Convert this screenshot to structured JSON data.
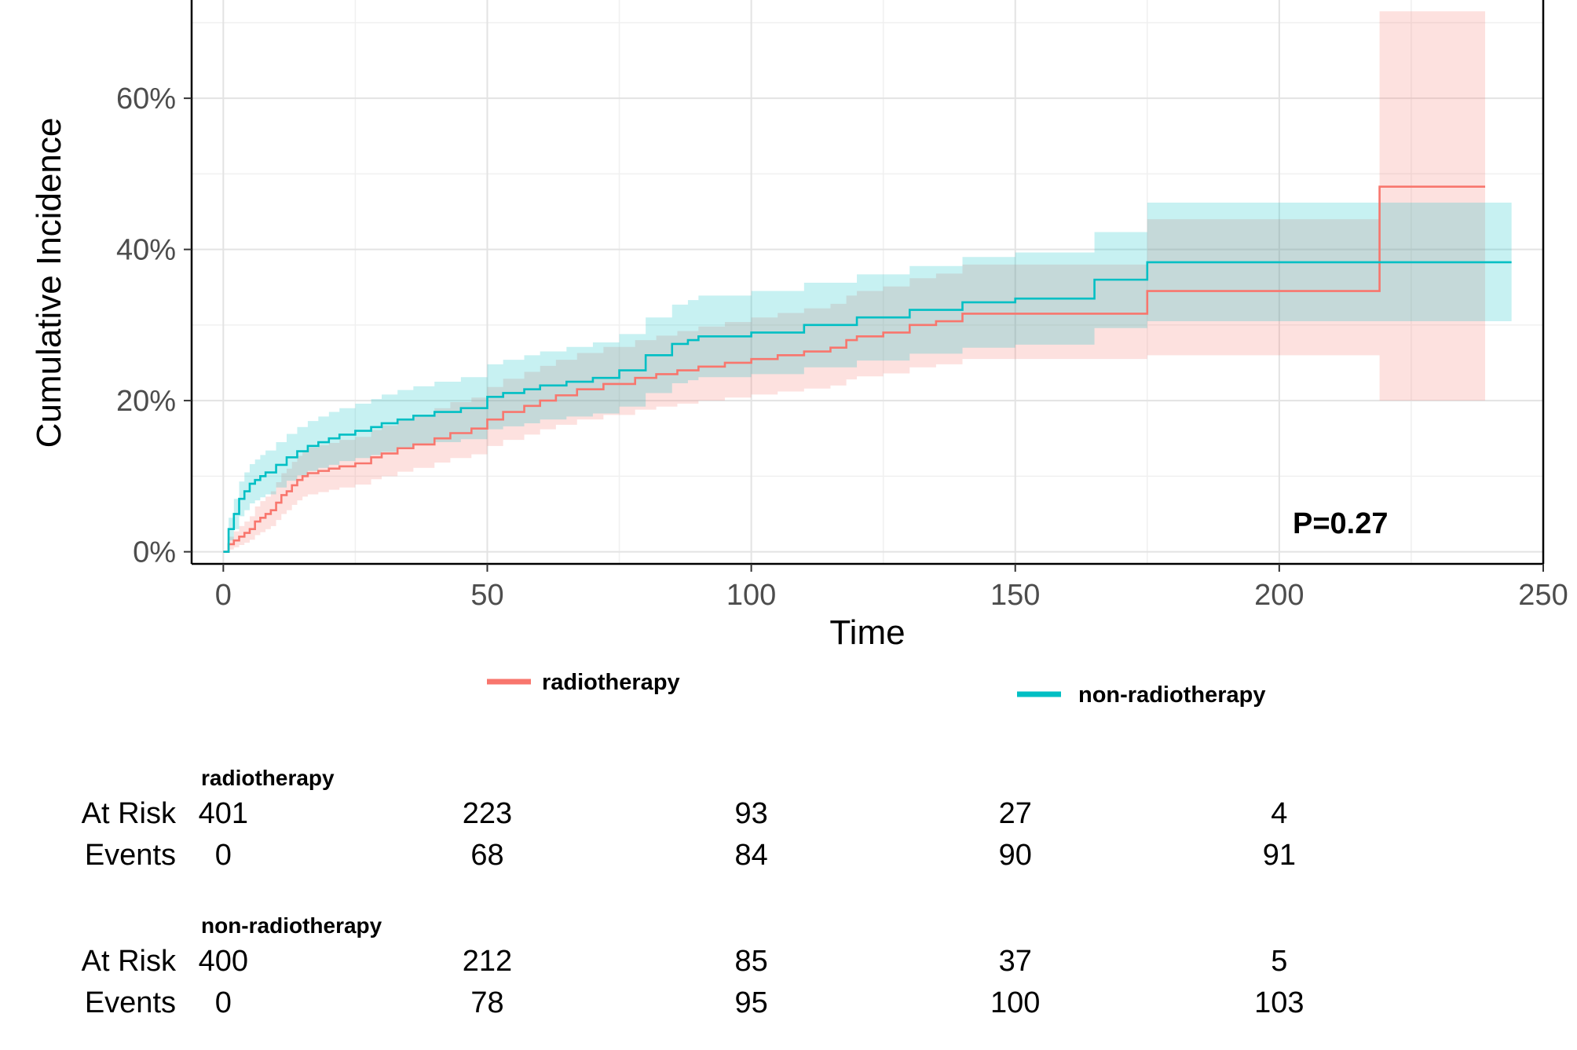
{
  "chart_data": {
    "type": "line",
    "subtype": "cumulative-incidence step curve with confidence bands",
    "xlabel": "Time",
    "ylabel": "Cumulative Incidence",
    "xlim": [
      -6,
      250
    ],
    "ylim": [
      -0.016,
      0.73
    ],
    "x_ticks": [
      0,
      50,
      100,
      150,
      200,
      250
    ],
    "x_tick_labels": [
      "0",
      "50",
      "100",
      "150",
      "200",
      "250"
    ],
    "y_ticks": [
      0,
      0.2,
      0.4,
      0.6
    ],
    "y_tick_labels": [
      "0%",
      "20%",
      "40%",
      "60%"
    ],
    "grid": true,
    "annotation": "P=0.27",
    "legend": {
      "position": "bottom"
    },
    "colors": {
      "radiotherapy": "#F8766D",
      "non_radiotherapy": "#00BFC4"
    },
    "series": [
      {
        "name": "radiotherapy",
        "legend_label": "radiotherapy",
        "color": "#F8766D",
        "x": [
          0,
          1,
          2,
          3,
          4,
          5,
          6,
          7,
          8,
          9,
          10,
          11,
          12,
          13,
          14,
          15,
          16,
          18,
          20,
          22,
          25,
          28,
          30,
          33,
          36,
          40,
          43,
          47,
          50,
          53,
          57,
          60,
          63,
          67,
          72,
          78,
          82,
          86,
          90,
          95,
          100,
          105,
          110,
          115,
          118,
          120,
          125,
          130,
          135,
          140,
          150,
          165,
          175,
          200,
          219,
          239
        ],
        "y": [
          0,
          0.01,
          0.015,
          0.02,
          0.025,
          0.03,
          0.04,
          0.045,
          0.05,
          0.055,
          0.065,
          0.075,
          0.08,
          0.088,
          0.095,
          0.1,
          0.104,
          0.107,
          0.11,
          0.113,
          0.117,
          0.125,
          0.13,
          0.137,
          0.142,
          0.15,
          0.157,
          0.163,
          0.175,
          0.185,
          0.193,
          0.2,
          0.207,
          0.215,
          0.222,
          0.23,
          0.235,
          0.24,
          0.245,
          0.25,
          0.255,
          0.26,
          0.265,
          0.27,
          0.28,
          0.285,
          0.29,
          0.3,
          0.305,
          0.315,
          0.315,
          0.315,
          0.345,
          0.345,
          0.483,
          0.483
        ],
        "lower": [
          0,
          0.003,
          0.006,
          0.009,
          0.012,
          0.016,
          0.022,
          0.026,
          0.03,
          0.034,
          0.042,
          0.05,
          0.055,
          0.062,
          0.068,
          0.073,
          0.076,
          0.079,
          0.082,
          0.085,
          0.089,
          0.096,
          0.1,
          0.106,
          0.111,
          0.118,
          0.124,
          0.129,
          0.14,
          0.148,
          0.155,
          0.162,
          0.168,
          0.175,
          0.181,
          0.188,
          0.192,
          0.196,
          0.2,
          0.204,
          0.208,
          0.212,
          0.216,
          0.22,
          0.228,
          0.232,
          0.236,
          0.244,
          0.248,
          0.255,
          0.255,
          0.255,
          0.26,
          0.26,
          0.2,
          0.2
        ],
        "upper": [
          0,
          0.02,
          0.027,
          0.034,
          0.04,
          0.047,
          0.06,
          0.067,
          0.073,
          0.08,
          0.092,
          0.104,
          0.11,
          0.119,
          0.127,
          0.133,
          0.138,
          0.141,
          0.144,
          0.148,
          0.152,
          0.161,
          0.167,
          0.175,
          0.18,
          0.19,
          0.198,
          0.204,
          0.218,
          0.229,
          0.238,
          0.246,
          0.254,
          0.263,
          0.271,
          0.28,
          0.286,
          0.292,
          0.298,
          0.304,
          0.31,
          0.316,
          0.322,
          0.328,
          0.339,
          0.345,
          0.351,
          0.362,
          0.368,
          0.38,
          0.38,
          0.38,
          0.44,
          0.44,
          0.715,
          0.715
        ]
      },
      {
        "name": "non-radiotherapy",
        "legend_label": "non-radiotherapy",
        "color": "#00BFC4",
        "x": [
          0,
          1,
          2,
          3,
          4,
          5,
          6,
          7,
          8,
          10,
          12,
          14,
          16,
          18,
          20,
          22,
          25,
          28,
          30,
          33,
          36,
          40,
          45,
          50,
          53,
          57,
          60,
          65,
          70,
          75,
          80,
          85,
          88,
          90,
          95,
          100,
          110,
          120,
          130,
          140,
          150,
          165,
          175,
          200,
          219,
          244
        ],
        "y": [
          0,
          0.03,
          0.05,
          0.07,
          0.08,
          0.09,
          0.095,
          0.1,
          0.105,
          0.115,
          0.125,
          0.133,
          0.14,
          0.145,
          0.15,
          0.155,
          0.16,
          0.165,
          0.17,
          0.175,
          0.18,
          0.185,
          0.19,
          0.205,
          0.21,
          0.215,
          0.22,
          0.225,
          0.23,
          0.24,
          0.26,
          0.275,
          0.28,
          0.285,
          0.285,
          0.29,
          0.3,
          0.31,
          0.32,
          0.33,
          0.335,
          0.36,
          0.383,
          0.383,
          0.383,
          0.383
        ],
        "lower": [
          0,
          0.015,
          0.03,
          0.047,
          0.055,
          0.064,
          0.068,
          0.072,
          0.076,
          0.085,
          0.094,
          0.101,
          0.107,
          0.111,
          0.115,
          0.12,
          0.124,
          0.128,
          0.132,
          0.136,
          0.141,
          0.145,
          0.149,
          0.162,
          0.166,
          0.17,
          0.175,
          0.179,
          0.183,
          0.192,
          0.21,
          0.223,
          0.227,
          0.231,
          0.231,
          0.235,
          0.244,
          0.253,
          0.262,
          0.27,
          0.274,
          0.296,
          0.305,
          0.305,
          0.305,
          0.305
        ],
        "upper": [
          0,
          0.045,
          0.07,
          0.093,
          0.105,
          0.116,
          0.122,
          0.128,
          0.134,
          0.145,
          0.156,
          0.165,
          0.173,
          0.179,
          0.185,
          0.19,
          0.196,
          0.202,
          0.208,
          0.214,
          0.219,
          0.225,
          0.231,
          0.248,
          0.254,
          0.26,
          0.265,
          0.271,
          0.277,
          0.288,
          0.31,
          0.327,
          0.333,
          0.339,
          0.339,
          0.345,
          0.356,
          0.367,
          0.378,
          0.39,
          0.396,
          0.423,
          0.462,
          0.462,
          0.462,
          0.462
        ]
      }
    ]
  },
  "risk_table": {
    "time_points": [
      0,
      50,
      100,
      150,
      200
    ],
    "groups": [
      {
        "title": "radiotherapy",
        "rows": [
          {
            "label": "At Risk",
            "values": [
              "401",
              "223",
              "93",
              "27",
              "4"
            ]
          },
          {
            "label": "Events",
            "values": [
              "0",
              "68",
              "84",
              "90",
              "91"
            ]
          }
        ]
      },
      {
        "title": "non-radiotherapy",
        "rows": [
          {
            "label": "At Risk",
            "values": [
              "400",
              "212",
              "85",
              "37",
              "5"
            ]
          },
          {
            "label": "Events",
            "values": [
              "0",
              "78",
              "95",
              "100",
              "103"
            ]
          }
        ]
      }
    ]
  }
}
